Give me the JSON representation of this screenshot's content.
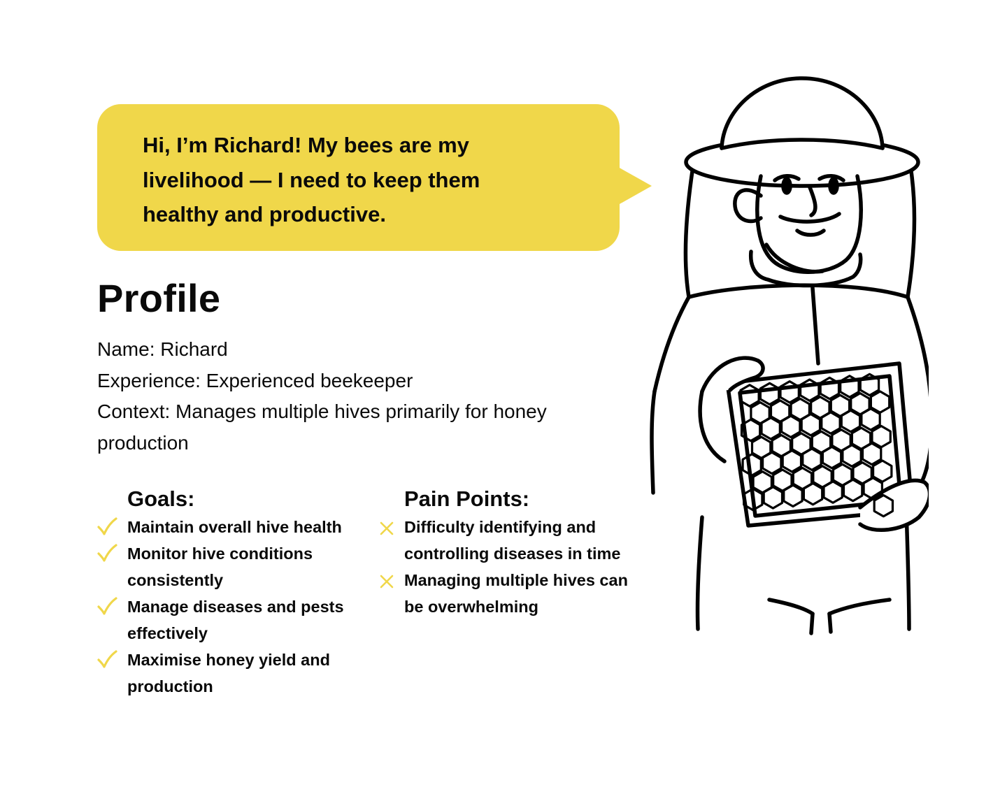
{
  "speech_bubble": {
    "quote": "Hi, I’m Richard! My bees are my livelihood — I need to keep them healthy and productive."
  },
  "profile": {
    "title": "Profile",
    "name": "Name: Richard",
    "experience": "Experience: Experienced beekeeper",
    "context": "Context: Manages multiple hives primarily for honey production"
  },
  "goals": {
    "heading": "Goals:",
    "items": [
      "Maintain overall hive health",
      "Monitor hive conditions consistently",
      "Manage diseases and pests effectively",
      "Maximise honey yield and production"
    ]
  },
  "pain_points": {
    "heading": "Pain Points:",
    "items": [
      "Difficulty identifying and controlling diseases in time",
      "Managing multiple hives can be overwhelming"
    ]
  },
  "colors": {
    "accent": "#f0d74a",
    "text": "#0a0a0a",
    "background": "#ffffff"
  },
  "icons": {
    "goal_marker": "checkmark-icon",
    "pain_marker": "x-mark-icon",
    "illustration": "beekeeper-illustration"
  }
}
